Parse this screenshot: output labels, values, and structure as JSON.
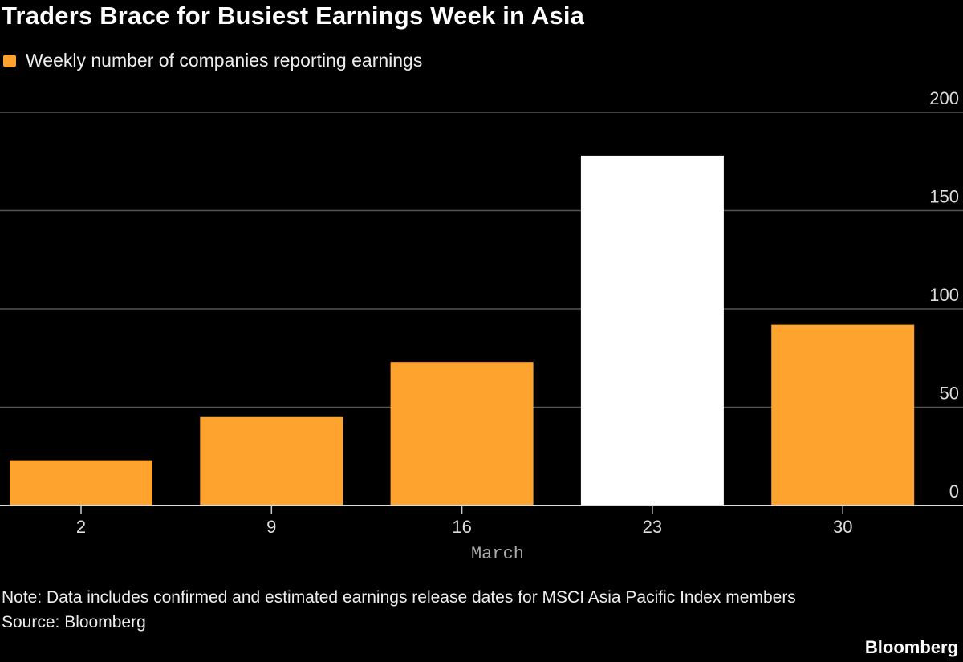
{
  "title": "Traders Brace for Busiest Earnings Week in Asia",
  "note": "Note: Data includes confirmed and estimated earnings release dates for MSCI Asia Pacific Index members",
  "source": "Source: Bloomberg",
  "brand": "Bloomberg",
  "colors": {
    "highlight": "#ffffff",
    "bar": "#ffa32f",
    "grid": "#555555",
    "axis_label": "#aaaaaa"
  },
  "chart_data": {
    "type": "bar",
    "title": "Traders Brace for Busiest Earnings Week in Asia",
    "xlabel": "March",
    "ylabel": "",
    "categories": [
      "2",
      "9",
      "16",
      "23",
      "30"
    ],
    "series": [
      {
        "name": "Weekly number of companies reporting earnings",
        "values": [
          23,
          45,
          73,
          178,
          92
        ]
      }
    ],
    "highlighted_category": "23",
    "ylim": [
      0,
      200
    ],
    "yticks": [
      0,
      50,
      100,
      150,
      200
    ],
    "grid": true,
    "y_axis_side": "right",
    "legend": "top-left"
  }
}
